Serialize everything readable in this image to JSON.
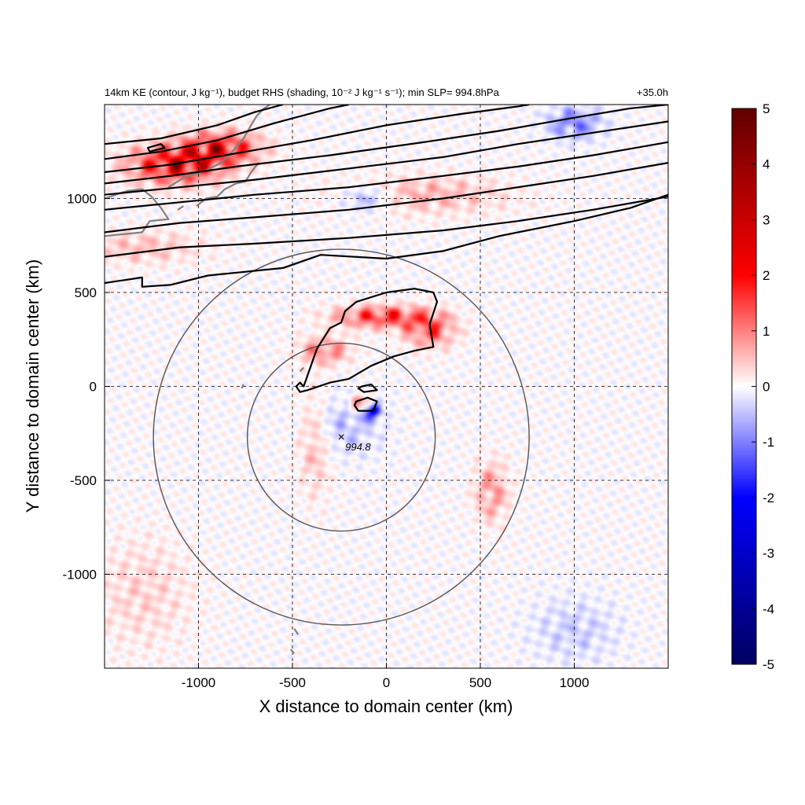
{
  "chart_data": {
    "type": "heatmap",
    "title_left": "14km KE (contour, J kg⁻¹), budget RHS (shading, 10⁻² J kg⁻¹ s⁻¹); min SLP= 994.8hPa",
    "title_right": "+35.0h",
    "xlabel": "X distance to domain center (km)",
    "ylabel": "Y distance to domain center (km)",
    "xlim": [
      -1500,
      1500
    ],
    "ylim": [
      -1500,
      1500
    ],
    "xticks": [
      -1000,
      -500,
      0,
      500,
      1000
    ],
    "xtick_labels": [
      "-1000",
      "-500",
      "0",
      "500",
      "1000"
    ],
    "yticks": [
      1000,
      500,
      0,
      -500,
      -1000
    ],
    "ytick_labels": [
      "1000",
      "500",
      "0",
      "-500",
      "-1000"
    ],
    "grid": true,
    "colorbar": {
      "min": -5,
      "max": 5,
      "ticks": [
        5,
        4,
        3,
        2,
        1,
        0,
        -1,
        -2,
        -3,
        -4,
        -5
      ],
      "tick_labels": [
        "5",
        "4",
        "3",
        "2",
        "1",
        "0",
        "-1",
        "-2",
        "-3",
        "-4",
        "-5"
      ],
      "colors": [
        "#000060",
        "#0000ff",
        "#ffffff",
        "#ff0000",
        "#600000"
      ]
    },
    "min_slp": {
      "label": "994.8",
      "x": -240,
      "y": -270
    },
    "rings": [
      {
        "center_x": -240,
        "center_y": -270,
        "radius": 500
      },
      {
        "center_x": -240,
        "center_y": -270,
        "radius": 1000
      }
    ],
    "anomalies": [
      {
        "x": -1120,
        "y": 1180,
        "sx": 170,
        "sy": 70,
        "amp": 4.2
      },
      {
        "x": -880,
        "y": 1270,
        "sx": 140,
        "sy": 60,
        "amp": 3.5
      },
      {
        "x": -20,
        "y": 370,
        "sx": 170,
        "sy": 40,
        "amp": 3.2
      },
      {
        "x": 230,
        "y": 300,
        "sx": 90,
        "sy": 60,
        "amp": 2.6
      },
      {
        "x": -330,
        "y": 190,
        "sx": 90,
        "sy": 50,
        "amp": 2.0
      },
      {
        "x": -80,
        "y": -130,
        "sx": 30,
        "sy": 30,
        "amp": -4.5
      },
      {
        "x": -130,
        "y": -90,
        "sx": 40,
        "sy": 30,
        "amp": 2.8
      },
      {
        "x": -220,
        "y": -210,
        "sx": 130,
        "sy": 110,
        "amp": -1.0
      },
      {
        "x": -380,
        "y": -300,
        "sx": 60,
        "sy": 180,
        "amp": 1.1
      },
      {
        "x": 560,
        "y": -560,
        "sx": 60,
        "sy": 110,
        "amp": 1.6
      },
      {
        "x": 200,
        "y": 1020,
        "sx": 300,
        "sy": 70,
        "amp": 1.2
      },
      {
        "x": -100,
        "y": 1000,
        "sx": 100,
        "sy": 50,
        "amp": -1.5
      },
      {
        "x": 1000,
        "y": 1400,
        "sx": 100,
        "sy": 60,
        "amp": -2.0
      },
      {
        "x": -1300,
        "y": 740,
        "sx": 220,
        "sy": 60,
        "amp": 1.0
      },
      {
        "x": 1000,
        "y": -1300,
        "sx": 160,
        "sy": 120,
        "amp": -0.8
      },
      {
        "x": -1300,
        "y": -1100,
        "sx": 180,
        "sy": 200,
        "amp": 0.7
      }
    ],
    "ke_contours": [
      {
        "points": [
          [
            -1500,
            1290
          ],
          [
            -1200,
            1320
          ],
          [
            -900,
            1390
          ],
          [
            -700,
            1460
          ],
          [
            -550,
            1500
          ]
        ]
      },
      {
        "points": [
          [
            -1500,
            1210
          ],
          [
            -1200,
            1250
          ],
          [
            -900,
            1310
          ],
          [
            -600,
            1400
          ],
          [
            -300,
            1480
          ],
          [
            -200,
            1500
          ]
        ]
      },
      {
        "points": [
          [
            -1500,
            1140
          ],
          [
            -1150,
            1180
          ],
          [
            -800,
            1240
          ],
          [
            -400,
            1310
          ],
          [
            0,
            1390
          ],
          [
            400,
            1450
          ],
          [
            700,
            1490
          ],
          [
            760,
            1500
          ]
        ]
      },
      {
        "points": [
          [
            -1500,
            1080
          ],
          [
            -1150,
            1120
          ],
          [
            -800,
            1170
          ],
          [
            -300,
            1230
          ],
          [
            200,
            1300
          ],
          [
            600,
            1360
          ],
          [
            1000,
            1430
          ],
          [
            1300,
            1480
          ],
          [
            1500,
            1500
          ]
        ]
      },
      {
        "points": [
          [
            -1500,
            1020
          ],
          [
            -1100,
            1060
          ],
          [
            -700,
            1100
          ],
          [
            -200,
            1160
          ],
          [
            300,
            1220
          ],
          [
            700,
            1290
          ],
          [
            1100,
            1350
          ],
          [
            1500,
            1410
          ]
        ]
      },
      {
        "points": [
          [
            -1500,
            940
          ],
          [
            -1100,
            980
          ],
          [
            -700,
            1020
          ],
          [
            -200,
            1060
          ],
          [
            300,
            1120
          ],
          [
            700,
            1170
          ],
          [
            1100,
            1230
          ],
          [
            1500,
            1300
          ]
        ]
      },
      {
        "points": [
          [
            -1500,
            820
          ],
          [
            -1100,
            870
          ],
          [
            -700,
            900
          ],
          [
            -200,
            940
          ],
          [
            300,
            1000
          ],
          [
            700,
            1060
          ],
          [
            1100,
            1120
          ],
          [
            1500,
            1190
          ]
        ]
      },
      {
        "points": [
          [
            -1500,
            690
          ],
          [
            -1100,
            740
          ],
          [
            -700,
            760
          ],
          [
            -200,
            790
          ],
          [
            300,
            830
          ],
          [
            700,
            880
          ],
          [
            1100,
            940
          ],
          [
            1500,
            1010
          ]
        ]
      },
      {
        "points": [
          [
            -1500,
            550
          ],
          [
            -1300,
            580
          ],
          [
            -1300,
            530
          ],
          [
            -1150,
            540
          ],
          [
            -950,
            590
          ],
          [
            -750,
            610
          ],
          [
            -550,
            630
          ],
          [
            -350,
            700
          ],
          [
            0,
            680
          ],
          [
            300,
            720
          ],
          [
            600,
            800
          ],
          [
            1000,
            880
          ],
          [
            1300,
            950
          ],
          [
            1500,
            1020
          ]
        ]
      },
      {
        "closed": true,
        "points": [
          [
            -440,
            0
          ],
          [
            -370,
            200
          ],
          [
            -300,
            310
          ],
          [
            -240,
            340
          ],
          [
            -220,
            400
          ],
          [
            -160,
            450
          ],
          [
            0,
            500
          ],
          [
            150,
            520
          ],
          [
            250,
            500
          ],
          [
            270,
            450
          ],
          [
            230,
            330
          ],
          [
            250,
            210
          ],
          [
            150,
            190
          ],
          [
            40,
            160
          ],
          [
            -80,
            110
          ],
          [
            -200,
            40
          ],
          [
            -300,
            20
          ],
          [
            -420,
            -20
          ],
          [
            -460,
            -30
          ],
          [
            -480,
            0
          ],
          [
            -460,
            20
          ]
        ]
      },
      {
        "closed": true,
        "points": [
          [
            -130,
            0
          ],
          [
            -80,
            10
          ],
          [
            -50,
            -20
          ],
          [
            -120,
            -30
          ],
          [
            -150,
            -10
          ]
        ]
      },
      {
        "closed": true,
        "points": [
          [
            -160,
            -80
          ],
          [
            -100,
            -60
          ],
          [
            -50,
            -80
          ],
          [
            -70,
            -130
          ],
          [
            -150,
            -130
          ],
          [
            -170,
            -100
          ]
        ]
      },
      {
        "closed": true,
        "points": [
          [
            -1270,
            1270
          ],
          [
            -1200,
            1290
          ],
          [
            -1180,
            1270
          ],
          [
            -1260,
            1250
          ]
        ]
      }
    ],
    "coastlines": [
      {
        "points": [
          [
            -1500,
            1000
          ],
          [
            -1380,
            1040
          ],
          [
            -1300,
            1050
          ],
          [
            -1250,
            1010
          ],
          [
            -1200,
            950
          ],
          [
            -1160,
            890
          ],
          [
            -1260,
            880
          ],
          [
            -1300,
            820
          ],
          [
            -1500,
            800
          ]
        ]
      },
      {
        "points": [
          [
            -1160,
            1060
          ],
          [
            -1080,
            1110
          ],
          [
            -960,
            1150
          ],
          [
            -880,
            1190
          ],
          [
            -820,
            1250
          ],
          [
            -760,
            1320
          ],
          [
            -720,
            1390
          ],
          [
            -690,
            1440
          ]
        ]
      },
      {
        "points": [
          [
            -1010,
            960
          ],
          [
            -960,
            1000
          ],
          [
            -900,
            1010
          ],
          [
            -860,
            1050
          ],
          [
            -800,
            1080
          ],
          [
            -750,
            1090
          ],
          [
            -720,
            1140
          ],
          [
            -680,
            1190
          ]
        ]
      },
      {
        "points": [
          [
            -690,
            1440
          ],
          [
            -650,
            1480
          ],
          [
            -620,
            1500
          ]
        ]
      },
      {
        "points": [
          [
            -1110,
            940
          ],
          [
            -1080,
            960
          ]
        ]
      },
      {
        "points": [
          [
            -460,
            80
          ],
          [
            -440,
            100
          ]
        ]
      },
      {
        "points": [
          [
            -770,
            -10
          ],
          [
            -760,
            10
          ]
        ]
      },
      {
        "points": [
          [
            -490,
            -1290
          ],
          [
            -470,
            -1320
          ]
        ]
      },
      {
        "points": [
          [
            -510,
            -1400
          ],
          [
            -490,
            -1420
          ]
        ]
      }
    ]
  }
}
